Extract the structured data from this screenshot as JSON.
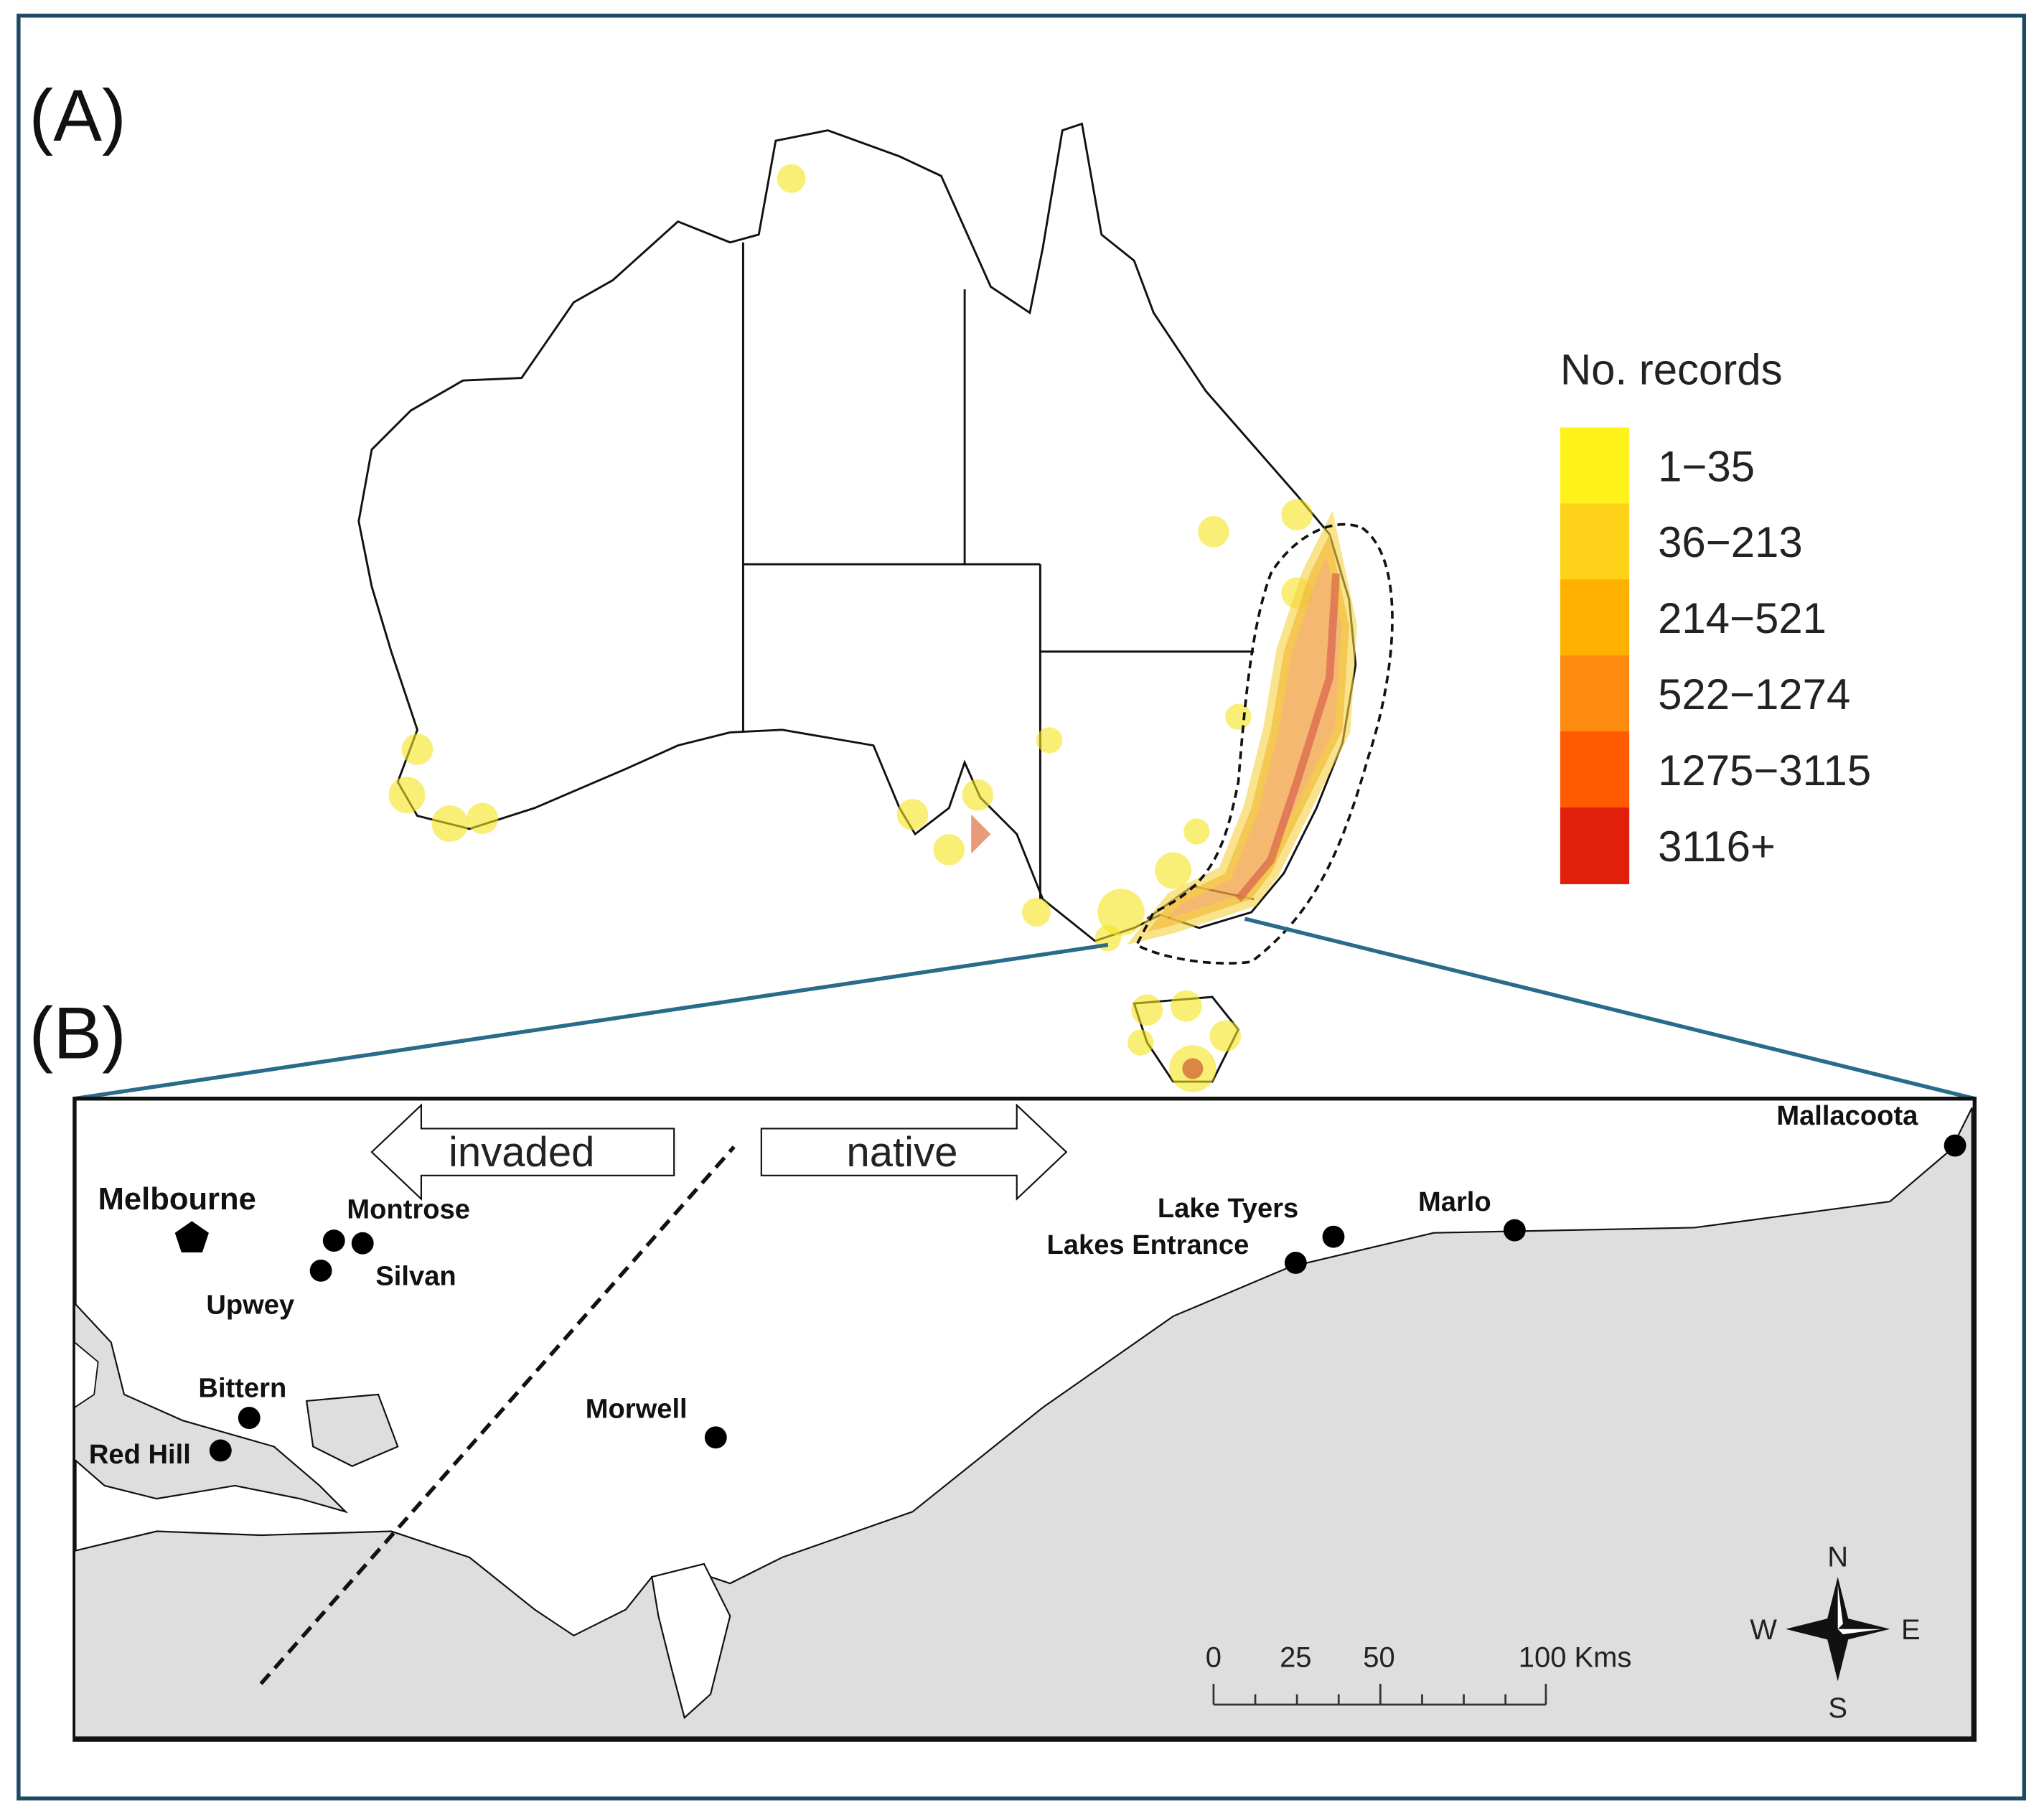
{
  "panel_a": {
    "label": "(A)",
    "legend": {
      "title": "No. records",
      "items": [
        {
          "label": "1−35",
          "color": "#fff21a"
        },
        {
          "label": "36−213",
          "color": "#ffd21a"
        },
        {
          "label": "214−521",
          "color": "#ffb000"
        },
        {
          "label": "522−1274",
          "color": "#ff8a10"
        },
        {
          "label": "1275−3115",
          "color": "#ff5a00"
        },
        {
          "label": "3116+",
          "color": "#e0200a"
        }
      ]
    }
  },
  "panel_b": {
    "label": "(B)",
    "places": [
      "Melbourne",
      "Montrose",
      "Silvan",
      "Upwey",
      "Bittern",
      "Red Hill",
      "Morwell",
      "Lake Tyers",
      "Lakes Entrance",
      "Marlo",
      "Mallacoota"
    ],
    "arrows": [
      "invaded",
      "native"
    ],
    "scale_labels": [
      "0",
      "25",
      "50",
      "100 Kms"
    ],
    "compass": [
      "N",
      "E",
      "S",
      "W"
    ]
  }
}
